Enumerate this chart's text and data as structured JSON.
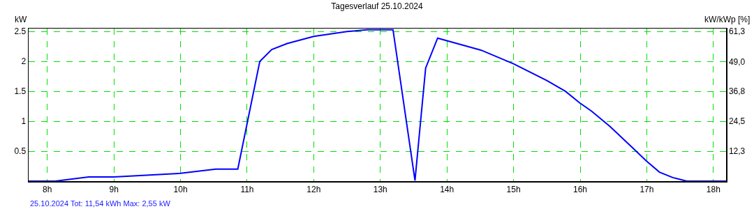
{
  "chart_data": {
    "type": "line",
    "title": "Tagesverlauf 25.10.2024",
    "ylabel": "kW",
    "y2label": "kW/kWp [%]",
    "annotations": [
      "25.10.2024 Tot: 11,54 kWh Max: 2,55 kW"
    ],
    "x": [
      7.72,
      8.12,
      8.62,
      9.0,
      10.0,
      10.53,
      10.86,
      11.19,
      11.37,
      11.6,
      12.0,
      12.5,
      12.8,
      13.19,
      13.52,
      13.68,
      13.86,
      14.51,
      15.0,
      15.5,
      15.78,
      15.99,
      16.17,
      16.45,
      16.84,
      16.99,
      17.19,
      17.39,
      17.6,
      18.19
    ],
    "series": [
      {
        "color": "#0000ff",
        "values": [
          0,
          0,
          0.07,
          0.07,
          0.13,
          0.2,
          0.2,
          2.0,
          2.2,
          2.3,
          2.42,
          2.5,
          2.53,
          2.53,
          0.01,
          1.89,
          2.39,
          2.19,
          1.96,
          1.68,
          1.5,
          1.31,
          1.17,
          0.91,
          0.5,
          0.34,
          0.15,
          0.06,
          0,
          0
        ]
      }
    ],
    "xlim": [
      7.72,
      18.19
    ],
    "xticks": [
      {
        "value": 8,
        "label": "8h"
      },
      {
        "value": 9,
        "label": "9h"
      },
      {
        "value": 10,
        "label": "10h"
      },
      {
        "value": 11,
        "label": "11h"
      },
      {
        "value": 12,
        "label": "12h"
      },
      {
        "value": 13,
        "label": "13h"
      },
      {
        "value": 14,
        "label": "14h"
      },
      {
        "value": 15,
        "label": "15h"
      },
      {
        "value": 16,
        "label": "16h"
      },
      {
        "value": 17,
        "label": "17h"
      },
      {
        "value": 18,
        "label": "18h"
      }
    ],
    "ylim": [
      0,
      2.55
    ],
    "yticks": [
      0.5,
      1,
      1.5,
      2,
      2.5
    ],
    "y2lim": [
      0,
      62.5
    ],
    "y2ticks": [
      {
        "value": 12.3,
        "label": "12,3"
      },
      {
        "value": 24.5,
        "label": "24,5"
      },
      {
        "value": 36.8,
        "label": "36,8"
      },
      {
        "value": 49.0,
        "label": "49,0"
      },
      {
        "value": 61.3,
        "label": "61,3"
      }
    ],
    "grid": true,
    "marker": "none",
    "line_style": "solid"
  }
}
